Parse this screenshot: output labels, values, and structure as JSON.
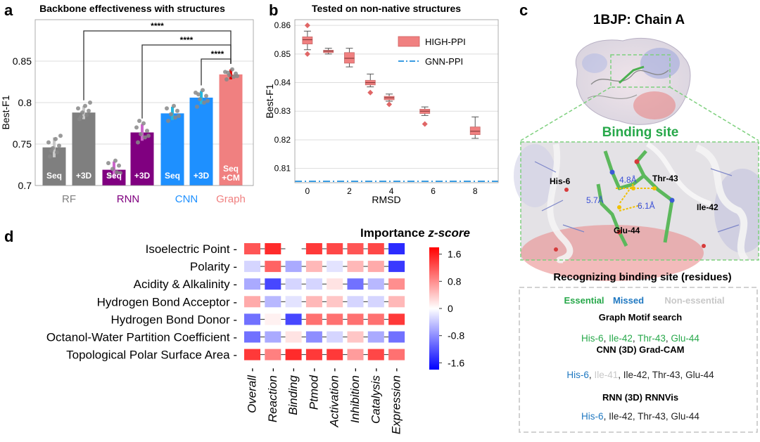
{
  "panels": {
    "a": {
      "letter": "a",
      "title": "Backbone effectiveness with structures"
    },
    "b": {
      "letter": "b",
      "title": "Tested on non-native structures"
    },
    "c": {
      "letter": "c",
      "title": "1BJP: Chain A"
    },
    "d": {
      "letter": "d"
    }
  },
  "chart_data": [
    {
      "id": "a",
      "type": "bar",
      "title": "Backbone effectiveness with structures",
      "ylabel": "Best-F1",
      "ylim": [
        0.7,
        0.9
      ],
      "yticks": [
        0.7,
        0.75,
        0.8,
        0.85
      ],
      "ytick_labels": [
        "0.7",
        "0.75",
        "0.8",
        "0.85"
      ],
      "groups": [
        {
          "name": "RF",
          "color": "#7f7f7f"
        },
        {
          "name": "RNN",
          "color": "#800080"
        },
        {
          "name": "CNN",
          "color": "#1e90ff"
        },
        {
          "name": "Graph",
          "color": "#f08080"
        }
      ],
      "bars": [
        {
          "group": "RF",
          "label": "Seq",
          "value": 0.746,
          "err": 0.012,
          "color": "#7f7f7f",
          "err_color": "#c8c8c8",
          "points": [
            0.735,
            0.74,
            0.745,
            0.748,
            0.752,
            0.756,
            0.76,
            0.742
          ]
        },
        {
          "group": "RF",
          "label": "+3D",
          "value": 0.788,
          "err": 0.008,
          "color": "#7f7f7f",
          "err_color": "#c8c8c8",
          "points": [
            0.78,
            0.785,
            0.788,
            0.79,
            0.793,
            0.796,
            0.8,
            0.783
          ]
        },
        {
          "group": "RNN",
          "label": "Seq",
          "value": 0.719,
          "err": 0.01,
          "color": "#800080",
          "err_color": "#cc66cc",
          "points": [
            0.712,
            0.716,
            0.72,
            0.724,
            0.727,
            0.73,
            0.715
          ]
        },
        {
          "group": "RNN",
          "label": "+3D",
          "value": 0.764,
          "err": 0.01,
          "color": "#800080",
          "err_color": "#cc66cc",
          "points": [
            0.752,
            0.758,
            0.762,
            0.766,
            0.77,
            0.775,
            0.76,
            0.778
          ]
        },
        {
          "group": "CNN",
          "label": "Seq",
          "value": 0.787,
          "err": 0.008,
          "color": "#1e90ff",
          "err_color": "#22b8e0",
          "points": [
            0.778,
            0.782,
            0.786,
            0.79,
            0.793,
            0.796,
            0.784
          ]
        },
        {
          "group": "CNN",
          "label": "+3D",
          "value": 0.806,
          "err": 0.008,
          "color": "#1e90ff",
          "err_color": "#22b8e0",
          "points": [
            0.795,
            0.8,
            0.804,
            0.808,
            0.812,
            0.815,
            0.802,
            0.81
          ]
        },
        {
          "group": "Graph",
          "label": "Seq\n+CM",
          "value": 0.834,
          "err": 0.006,
          "color": "#f08080",
          "err_color": "#e60000",
          "points": [
            0.828,
            0.831,
            0.833,
            0.835,
            0.837,
            0.84,
            0.832,
            0.836
          ]
        }
      ],
      "significance": [
        {
          "from": 1,
          "to": 6,
          "label": "****"
        },
        {
          "from": 3,
          "to": 6,
          "label": "****"
        },
        {
          "from": 5,
          "to": 6,
          "label": "****"
        }
      ]
    },
    {
      "id": "b",
      "type": "box",
      "title": "Tested on non-native structures",
      "xlabel": "RMSD",
      "ylabel": "Best-F1",
      "xlim": [
        -0.6,
        9.1
      ],
      "ylim": [
        0.805,
        0.862
      ],
      "xticks": [
        0,
        2,
        4,
        6,
        8
      ],
      "yticks": [
        0.81,
        0.82,
        0.83,
        0.84,
        0.85,
        0.86
      ],
      "ytick_labels": [
        "0.81",
        "0.82",
        "0.83",
        "0.84",
        "0.85",
        "0.86"
      ],
      "legend": {
        "position": "top-right",
        "entries": [
          "HIGH-PPI",
          "GNN-PPI"
        ]
      },
      "series": [
        {
          "name": "HIGH-PPI",
          "color": "#f08080",
          "boxes": [
            {
              "x": 0,
              "min": 0.8515,
              "q1": 0.8535,
              "median": 0.855,
              "q3": 0.856,
              "max": 0.858,
              "outliers": [
                0.86,
                0.85
              ]
            },
            {
              "x": 1,
              "min": 0.85,
              "q1": 0.8505,
              "median": 0.851,
              "q3": 0.8513,
              "max": 0.852,
              "outliers": []
            },
            {
              "x": 2,
              "min": 0.8455,
              "q1": 0.8468,
              "median": 0.8485,
              "q3": 0.8505,
              "max": 0.852,
              "outliers": []
            },
            {
              "x": 3,
              "min": 0.8385,
              "q1": 0.8392,
              "median": 0.84,
              "q3": 0.8408,
              "max": 0.843,
              "outliers": [
                0.8365
              ]
            },
            {
              "x": 3.9,
              "min": 0.8335,
              "q1": 0.834,
              "median": 0.8347,
              "q3": 0.8352,
              "max": 0.836,
              "outliers": [
                0.8324
              ]
            },
            {
              "x": 5.6,
              "min": 0.8285,
              "q1": 0.8292,
              "median": 0.83,
              "q3": 0.8307,
              "max": 0.8315,
              "outliers": [
                0.8255
              ]
            },
            {
              "x": 8,
              "min": 0.8205,
              "q1": 0.8218,
              "median": 0.823,
              "q3": 0.8245,
              "max": 0.828,
              "outliers": []
            }
          ]
        },
        {
          "name": "GNN-PPI",
          "color": "#1f8fde",
          "line_style": "dash-dot",
          "value": 0.8055
        }
      ]
    },
    {
      "id": "d",
      "type": "heatmap",
      "title": "Importance z-score",
      "rows": [
        "Isoelectric Point",
        "Polarity",
        "Acidity & Alkalinity",
        "Hydrogen Bond Acceptor",
        "Hydrogen Bond Donor",
        "Octanol-Water Partition Coefficient",
        "Topological Polar Surface Area"
      ],
      "columns": [
        "Overall",
        "Reaction",
        "Binding",
        "Ptmod",
        "Activation",
        "Inhibition",
        "Catalysis",
        "Expression"
      ],
      "values": [
        [
          1.2,
          1.5,
          0.0,
          1.4,
          1.3,
          1.2,
          1.3,
          -1.5
        ],
        [
          -0.3,
          1.1,
          -0.6,
          0.5,
          -0.2,
          0.5,
          0.6,
          -1.4
        ],
        [
          -0.6,
          -1.3,
          -0.3,
          -0.3,
          0.2,
          -1.0,
          -0.5,
          0.8
        ],
        [
          0.6,
          -0.5,
          -0.2,
          0.5,
          0.4,
          -0.3,
          -0.3,
          0.5
        ],
        [
          -1.0,
          0.1,
          -1.3,
          1.0,
          1.0,
          1.0,
          1.0,
          1.4
        ],
        [
          -1.0,
          -0.6,
          0.2,
          -0.8,
          -0.3,
          0.4,
          -0.6,
          -1.0
        ],
        [
          1.4,
          0.9,
          1.5,
          1.4,
          1.4,
          0.7,
          1.3,
          1.0
        ]
      ],
      "colorbar": {
        "min": -1.8,
        "max": 1.8,
        "ticks": [
          1.6,
          0.8,
          0,
          -0.8,
          -1.6
        ],
        "tick_labels": [
          "1.6",
          "0.8",
          "0",
          "-0.8",
          "-1.6"
        ]
      }
    }
  ],
  "panel_c": {
    "binding_site_label": "Binding site",
    "residues": [
      {
        "label": "His-6",
        "color": "#000000"
      },
      {
        "label": "Thr-43",
        "color": "#000000"
      },
      {
        "label": "Ile-42",
        "color": "#000000"
      },
      {
        "label": "Glu-44",
        "color": "#000000"
      }
    ],
    "distances": [
      "4.8Å",
      "5.7Å",
      "6.1Å"
    ],
    "box_title": "Recognizing binding site (residues)",
    "legend": [
      {
        "label": "Essential",
        "color": "#27a84a"
      },
      {
        "label": "Missed",
        "color": "#1f78c1"
      },
      {
        "label": "Non-essential",
        "color": "#c8c8c8"
      }
    ],
    "methods": [
      {
        "name": "Graph Motif search",
        "residues": [
          {
            "t": "His-6",
            "c": "#27a84a"
          },
          {
            "t": ", ",
            "c": "#222"
          },
          {
            "t": "Ile-42",
            "c": "#27a84a"
          },
          {
            "t": ", ",
            "c": "#222"
          },
          {
            "t": "Thr-43",
            "c": "#27a84a"
          },
          {
            "t": ", ",
            "c": "#222"
          },
          {
            "t": "Glu-44",
            "c": "#27a84a"
          }
        ]
      },
      {
        "name": "CNN (3D) Grad-CAM",
        "residues": [
          {
            "t": "His-6",
            "c": "#1f78c1"
          },
          {
            "t": ", ",
            "c": "#222"
          },
          {
            "t": "Ile-41",
            "c": "#c8c8c8"
          },
          {
            "t": ", ",
            "c": "#222"
          },
          {
            "t": "Ile-42",
            "c": "#222"
          },
          {
            "t": ", ",
            "c": "#222"
          },
          {
            "t": "Thr-43",
            "c": "#222"
          },
          {
            "t": ", ",
            "c": "#222"
          },
          {
            "t": "Glu-44",
            "c": "#222"
          }
        ]
      },
      {
        "name": "RNN (3D) RNNVis",
        "residues": [
          {
            "t": "His-6",
            "c": "#1f78c1"
          },
          {
            "t": ", ",
            "c": "#222"
          },
          {
            "t": "Ile-42",
            "c": "#222"
          },
          {
            "t": ", ",
            "c": "#222"
          },
          {
            "t": "Thr-43",
            "c": "#222"
          },
          {
            "t": ", ",
            "c": "#222"
          },
          {
            "t": "Glu-44",
            "c": "#222"
          }
        ]
      }
    ]
  }
}
